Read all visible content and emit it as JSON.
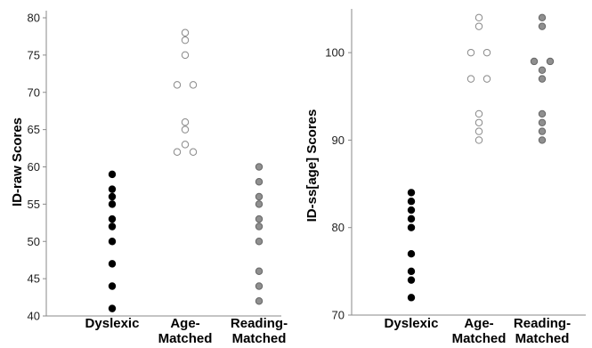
{
  "chart_data": [
    {
      "type": "scatter",
      "title": "",
      "xlabel": "",
      "ylabel": "ID-raw Scores",
      "ylim": [
        40,
        80
      ],
      "yticks": [
        "40",
        "45",
        "50",
        "55",
        "60",
        "65",
        "70",
        "75",
        "80"
      ],
      "categories": [
        {
          "line1": "Dyslexic",
          "line2": ""
        },
        {
          "line1": "Age-",
          "line2": "Matched"
        },
        {
          "line1": "Reading-",
          "line2": "Matched"
        }
      ],
      "grid": false,
      "series": [
        {
          "category_index": 0,
          "marker": "filled",
          "color": "#000000",
          "points": [
            {
              "y": 59,
              "offset": 0
            },
            {
              "y": 57,
              "offset": 0
            },
            {
              "y": 56,
              "offset": 0
            },
            {
              "y": 55,
              "offset": 0
            },
            {
              "y": 53,
              "offset": 0
            },
            {
              "y": 52,
              "offset": 0
            },
            {
              "y": 50,
              "offset": 0
            },
            {
              "y": 47,
              "offset": 0
            },
            {
              "y": 44,
              "offset": 0
            },
            {
              "y": 41,
              "offset": 0
            }
          ]
        },
        {
          "category_index": 1,
          "marker": "open",
          "color": "#888888",
          "points": [
            {
              "y": 78,
              "offset": 0
            },
            {
              "y": 77,
              "offset": 0
            },
            {
              "y": 75,
              "offset": 0
            },
            {
              "y": 71,
              "offset": -1
            },
            {
              "y": 71,
              "offset": 1
            },
            {
              "y": 66,
              "offset": 0
            },
            {
              "y": 65,
              "offset": 0
            },
            {
              "y": 63,
              "offset": 0
            },
            {
              "y": 62,
              "offset": -1
            },
            {
              "y": 62,
              "offset": 1
            }
          ]
        },
        {
          "category_index": 2,
          "marker": "gray",
          "color": "#8f8f8f",
          "points": [
            {
              "y": 60,
              "offset": 0
            },
            {
              "y": 58,
              "offset": 0
            },
            {
              "y": 56,
              "offset": 0
            },
            {
              "y": 55,
              "offset": 0
            },
            {
              "y": 53,
              "offset": 0
            },
            {
              "y": 52,
              "offset": 0
            },
            {
              "y": 50,
              "offset": 0
            },
            {
              "y": 46,
              "offset": 0
            },
            {
              "y": 44,
              "offset": 0
            },
            {
              "y": 42,
              "offset": 0
            }
          ]
        }
      ]
    },
    {
      "type": "scatter",
      "title": "",
      "xlabel": "",
      "ylabel": "ID-ss[age] Scores",
      "ylim": [
        70,
        105
      ],
      "yticks": [
        "70",
        "80",
        "90",
        "100"
      ],
      "categories": [
        {
          "line1": "Dyslexic",
          "line2": ""
        },
        {
          "line1": "Age-",
          "line2": "Matched"
        },
        {
          "line1": "Reading-",
          "line2": "Matched"
        }
      ],
      "grid": false,
      "series": [
        {
          "category_index": 0,
          "marker": "filled",
          "color": "#000000",
          "points": [
            {
              "y": 84,
              "offset": 0
            },
            {
              "y": 83,
              "offset": 0
            },
            {
              "y": 82,
              "offset": 0
            },
            {
              "y": 81,
              "offset": 0
            },
            {
              "y": 80,
              "offset": 0
            },
            {
              "y": 77,
              "offset": 0
            },
            {
              "y": 75,
              "offset": 0
            },
            {
              "y": 74,
              "offset": 0
            },
            {
              "y": 72,
              "offset": 0
            }
          ]
        },
        {
          "category_index": 1,
          "marker": "open",
          "color": "#888888",
          "points": [
            {
              "y": 104,
              "offset": 0
            },
            {
              "y": 103,
              "offset": 0
            },
            {
              "y": 100,
              "offset": -1
            },
            {
              "y": 100,
              "offset": 1
            },
            {
              "y": 97,
              "offset": -1
            },
            {
              "y": 97,
              "offset": 1
            },
            {
              "y": 93,
              "offset": 0
            },
            {
              "y": 92,
              "offset": 0
            },
            {
              "y": 91,
              "offset": 0
            },
            {
              "y": 90,
              "offset": 0
            }
          ]
        },
        {
          "category_index": 2,
          "marker": "gray",
          "color": "#8f8f8f",
          "points": [
            {
              "y": 104,
              "offset": 0
            },
            {
              "y": 103,
              "offset": 0
            },
            {
              "y": 99,
              "offset": -1
            },
            {
              "y": 99,
              "offset": 1
            },
            {
              "y": 98,
              "offset": 0
            },
            {
              "y": 97,
              "offset": 0
            },
            {
              "y": 93,
              "offset": 0
            },
            {
              "y": 92,
              "offset": 0
            },
            {
              "y": 91,
              "offset": 0
            },
            {
              "y": 90,
              "offset": 0
            }
          ]
        }
      ]
    }
  ]
}
